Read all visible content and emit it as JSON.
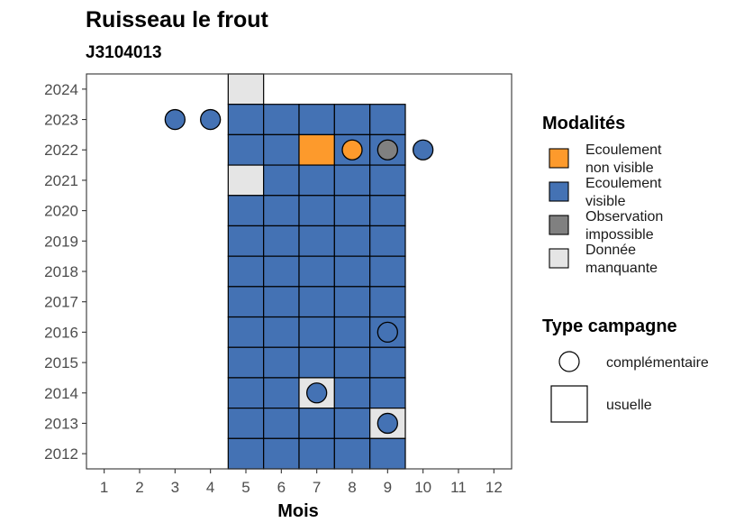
{
  "chart_data": {
    "type": "heatmap",
    "title": "Ruisseau le frout",
    "subtitle": "J3104013",
    "xlabel": "Mois",
    "ylabel": "",
    "x_ticks": [
      "1",
      "2",
      "3",
      "4",
      "5",
      "6",
      "7",
      "8",
      "9",
      "10",
      "11",
      "12"
    ],
    "y_ticks": [
      "2012",
      "2013",
      "2014",
      "2015",
      "2016",
      "2017",
      "2018",
      "2019",
      "2020",
      "2021",
      "2022",
      "2023",
      "2024"
    ],
    "xlim": [
      0.5,
      12.5
    ],
    "ylim": [
      2011.5,
      2024.5
    ],
    "grid": false,
    "colors": {
      "Ecoulement non visible": "#fd9a2c",
      "Ecoulement visible": "#4472b4",
      "Observation impossible": "#808080",
      "Donnée manquante": "#e5e5e5"
    },
    "campaigns_usuelle": [
      {
        "year": 2024,
        "month": 5,
        "status": "Donnée manquante"
      },
      {
        "year": 2023,
        "month": 5,
        "status": "Ecoulement visible"
      },
      {
        "year": 2023,
        "month": 6,
        "status": "Ecoulement visible"
      },
      {
        "year": 2023,
        "month": 7,
        "status": "Ecoulement visible"
      },
      {
        "year": 2023,
        "month": 8,
        "status": "Ecoulement visible"
      },
      {
        "year": 2023,
        "month": 9,
        "status": "Ecoulement visible"
      },
      {
        "year": 2022,
        "month": 5,
        "status": "Ecoulement visible"
      },
      {
        "year": 2022,
        "month": 6,
        "status": "Ecoulement visible"
      },
      {
        "year": 2022,
        "month": 7,
        "status": "Ecoulement non visible"
      },
      {
        "year": 2022,
        "month": 8,
        "status": "Ecoulement visible"
      },
      {
        "year": 2022,
        "month": 9,
        "status": "Ecoulement visible"
      },
      {
        "year": 2021,
        "month": 5,
        "status": "Donnée manquante"
      },
      {
        "year": 2021,
        "month": 6,
        "status": "Ecoulement visible"
      },
      {
        "year": 2021,
        "month": 7,
        "status": "Ecoulement visible"
      },
      {
        "year": 2021,
        "month": 8,
        "status": "Ecoulement visible"
      },
      {
        "year": 2021,
        "month": 9,
        "status": "Ecoulement visible"
      },
      {
        "year": 2020,
        "month": 5,
        "status": "Ecoulement visible"
      },
      {
        "year": 2020,
        "month": 6,
        "status": "Ecoulement visible"
      },
      {
        "year": 2020,
        "month": 7,
        "status": "Ecoulement visible"
      },
      {
        "year": 2020,
        "month": 8,
        "status": "Ecoulement visible"
      },
      {
        "year": 2020,
        "month": 9,
        "status": "Ecoulement visible"
      },
      {
        "year": 2019,
        "month": 5,
        "status": "Ecoulement visible"
      },
      {
        "year": 2019,
        "month": 6,
        "status": "Ecoulement visible"
      },
      {
        "year": 2019,
        "month": 7,
        "status": "Ecoulement visible"
      },
      {
        "year": 2019,
        "month": 8,
        "status": "Ecoulement visible"
      },
      {
        "year": 2019,
        "month": 9,
        "status": "Ecoulement visible"
      },
      {
        "year": 2018,
        "month": 5,
        "status": "Ecoulement visible"
      },
      {
        "year": 2018,
        "month": 6,
        "status": "Ecoulement visible"
      },
      {
        "year": 2018,
        "month": 7,
        "status": "Ecoulement visible"
      },
      {
        "year": 2018,
        "month": 8,
        "status": "Ecoulement visible"
      },
      {
        "year": 2018,
        "month": 9,
        "status": "Ecoulement visible"
      },
      {
        "year": 2017,
        "month": 5,
        "status": "Ecoulement visible"
      },
      {
        "year": 2017,
        "month": 6,
        "status": "Ecoulement visible"
      },
      {
        "year": 2017,
        "month": 7,
        "status": "Ecoulement visible"
      },
      {
        "year": 2017,
        "month": 8,
        "status": "Ecoulement visible"
      },
      {
        "year": 2017,
        "month": 9,
        "status": "Ecoulement visible"
      },
      {
        "year": 2016,
        "month": 5,
        "status": "Ecoulement visible"
      },
      {
        "year": 2016,
        "month": 6,
        "status": "Ecoulement visible"
      },
      {
        "year": 2016,
        "month": 7,
        "status": "Ecoulement visible"
      },
      {
        "year": 2016,
        "month": 8,
        "status": "Ecoulement visible"
      },
      {
        "year": 2016,
        "month": 9,
        "status": "Ecoulement visible"
      },
      {
        "year": 2015,
        "month": 5,
        "status": "Ecoulement visible"
      },
      {
        "year": 2015,
        "month": 6,
        "status": "Ecoulement visible"
      },
      {
        "year": 2015,
        "month": 7,
        "status": "Ecoulement visible"
      },
      {
        "year": 2015,
        "month": 8,
        "status": "Ecoulement visible"
      },
      {
        "year": 2015,
        "month": 9,
        "status": "Ecoulement visible"
      },
      {
        "year": 2014,
        "month": 5,
        "status": "Ecoulement visible"
      },
      {
        "year": 2014,
        "month": 6,
        "status": "Ecoulement visible"
      },
      {
        "year": 2014,
        "month": 7,
        "status": "Donnée manquante"
      },
      {
        "year": 2014,
        "month": 8,
        "status": "Ecoulement visible"
      },
      {
        "year": 2014,
        "month": 9,
        "status": "Ecoulement visible"
      },
      {
        "year": 2013,
        "month": 5,
        "status": "Ecoulement visible"
      },
      {
        "year": 2013,
        "month": 6,
        "status": "Ecoulement visible"
      },
      {
        "year": 2013,
        "month": 7,
        "status": "Ecoulement visible"
      },
      {
        "year": 2013,
        "month": 8,
        "status": "Ecoulement visible"
      },
      {
        "year": 2013,
        "month": 9,
        "status": "Donnée manquante"
      },
      {
        "year": 2012,
        "month": 5,
        "status": "Ecoulement visible"
      },
      {
        "year": 2012,
        "month": 6,
        "status": "Ecoulement visible"
      },
      {
        "year": 2012,
        "month": 7,
        "status": "Ecoulement visible"
      },
      {
        "year": 2012,
        "month": 8,
        "status": "Ecoulement visible"
      },
      {
        "year": 2012,
        "month": 9,
        "status": "Ecoulement visible"
      }
    ],
    "campaigns_complementaire": [
      {
        "year": 2023,
        "month": 3,
        "status": "Ecoulement visible"
      },
      {
        "year": 2023,
        "month": 4,
        "status": "Ecoulement visible"
      },
      {
        "year": 2022,
        "month": 8,
        "status": "Ecoulement non visible"
      },
      {
        "year": 2022,
        "month": 9,
        "status": "Observation impossible"
      },
      {
        "year": 2022,
        "month": 10,
        "status": "Ecoulement visible"
      },
      {
        "year": 2016,
        "month": 9,
        "status": "Ecoulement visible"
      },
      {
        "year": 2014,
        "month": 7,
        "status": "Ecoulement visible"
      },
      {
        "year": 2013,
        "month": 9,
        "status": "Ecoulement visible"
      }
    ],
    "legend": {
      "placement": "right",
      "modalites_title": "Modalités",
      "modalites": [
        {
          "line1": "Ecoulement",
          "line2": "non visible",
          "color": "#fd9a2c"
        },
        {
          "line1": "Ecoulement",
          "line2": "visible",
          "color": "#4472b4"
        },
        {
          "line1": "Observation",
          "line2": "impossible",
          "color": "#808080"
        },
        {
          "line1": "Donnée",
          "line2": "manquante",
          "color": "#e5e5e5"
        }
      ],
      "type_title": "Type campagne",
      "types": [
        "complémentaire",
        "usuelle"
      ]
    }
  }
}
